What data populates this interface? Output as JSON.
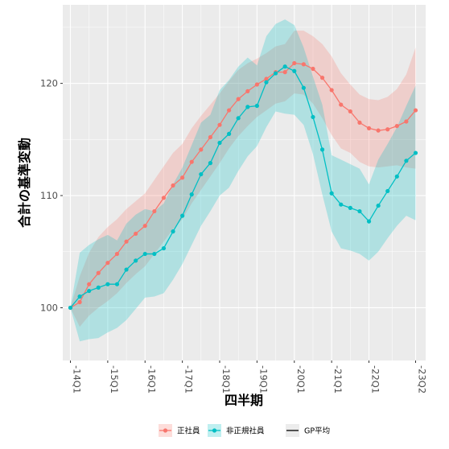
{
  "chart_data": {
    "type": "line",
    "xlabel": "四半期",
    "ylabel": "合計の基準変動",
    "x": [
      "14Q1",
      "14Q2",
      "14Q3",
      "14Q4",
      "15Q1",
      "15Q2",
      "15Q3",
      "15Q4",
      "16Q1",
      "16Q2",
      "16Q3",
      "16Q4",
      "17Q1",
      "17Q2",
      "17Q3",
      "17Q4",
      "18Q1",
      "18Q2",
      "18Q3",
      "18Q4",
      "19Q1",
      "19Q2",
      "19Q3",
      "19Q4",
      "20Q1",
      "20Q2",
      "20Q3",
      "20Q4",
      "21Q1",
      "21Q2",
      "21Q3",
      "21Q4",
      "22Q1",
      "22Q2",
      "22Q3",
      "22Q4",
      "23Q1",
      "23Q2"
    ],
    "x_tick_labels": [
      "14Q1",
      "15Q1",
      "16Q1",
      "17Q1",
      "18Q1",
      "19Q1",
      "20Q1",
      "21Q1",
      "22Q1",
      "23Q2"
    ],
    "y_ticks": [
      100,
      110,
      120
    ],
    "ylim": [
      95.3,
      127
    ],
    "grid": true,
    "legend_position": "bottom",
    "series": [
      {
        "name": "正社員",
        "color": "#F8766D",
        "values": [
          100.0,
          100.5,
          102.1,
          103.1,
          104.0,
          104.8,
          105.9,
          106.6,
          107.3,
          108.6,
          109.8,
          110.9,
          111.6,
          113.0,
          114.1,
          115.2,
          116.3,
          117.6,
          118.6,
          119.3,
          119.9,
          120.4,
          121.0,
          121.0,
          121.8,
          121.7,
          121.3,
          120.5,
          119.4,
          118.1,
          117.5,
          116.5,
          116.0,
          115.8,
          115.9,
          116.2,
          116.6,
          117.6
        ],
        "lower": [
          100.0,
          98.3,
          99.3,
          100.0,
          100.6,
          101.3,
          102.2,
          103.0,
          103.7,
          104.8,
          105.9,
          107.0,
          107.9,
          109.3,
          110.5,
          111.7,
          112.9,
          114.2,
          115.3,
          116.2,
          117.0,
          117.6,
          118.2,
          118.4,
          119.1,
          119.0,
          118.2,
          116.9,
          115.4,
          114.2,
          113.8,
          113.0,
          112.6,
          112.5,
          112.6,
          112.7,
          112.5,
          112.4
        ],
        "upper": [
          100.0,
          102.8,
          104.9,
          106.3,
          107.2,
          107.9,
          108.8,
          109.5,
          110.2,
          111.4,
          112.6,
          113.8,
          114.6,
          116.0,
          117.1,
          118.1,
          119.1,
          120.2,
          121.2,
          121.8,
          122.2,
          122.7,
          123.3,
          123.5,
          124.7,
          124.7,
          124.2,
          123.5,
          122.4,
          120.9,
          119.9,
          119.0,
          118.6,
          118.5,
          118.8,
          119.5,
          120.8,
          123.2
        ]
      },
      {
        "name": "非正規社員",
        "color": "#00BFC4",
        "values": [
          100.0,
          101.0,
          101.5,
          101.8,
          102.1,
          102.1,
          103.4,
          104.2,
          104.8,
          104.8,
          105.3,
          106.8,
          108.2,
          110.1,
          111.9,
          112.9,
          114.7,
          115.5,
          116.9,
          117.9,
          118.0,
          120.1,
          120.9,
          121.5,
          121.1,
          119.6,
          117.0,
          114.1,
          110.2,
          109.2,
          108.9,
          108.6,
          107.7,
          109.1,
          110.4,
          111.7,
          113.1,
          113.8
        ],
        "lower": [
          100.0,
          97.0,
          97.2,
          97.3,
          97.8,
          98.2,
          98.9,
          99.9,
          100.9,
          101.0,
          101.3,
          102.5,
          103.9,
          105.6,
          107.3,
          108.6,
          110.0,
          110.7,
          112.2,
          113.5,
          114.4,
          116.1,
          117.5,
          117.3,
          117.2,
          116.3,
          113.7,
          110.1,
          106.8,
          105.3,
          105.1,
          104.8,
          104.2,
          105.0,
          106.2,
          107.3,
          108.2,
          107.8
        ],
        "upper": [
          100.0,
          104.9,
          105.6,
          106.1,
          106.5,
          106.0,
          107.5,
          108.3,
          108.8,
          108.6,
          109.3,
          111.0,
          112.5,
          114.5,
          116.5,
          117.2,
          119.4,
          120.3,
          121.5,
          122.3,
          121.6,
          124.2,
          125.3,
          125.7,
          125.2,
          123.2,
          120.6,
          118.1,
          113.6,
          113.2,
          112.8,
          112.4,
          111.0,
          113.2,
          114.6,
          116.1,
          118.0,
          119.8
        ]
      }
    ],
    "legend": [
      {
        "label": "正社員",
        "color": "#F8766D"
      },
      {
        "label": "非正規社員",
        "color": "#00BFC4"
      },
      {
        "label": "GP平均",
        "color": "#000000"
      }
    ]
  }
}
